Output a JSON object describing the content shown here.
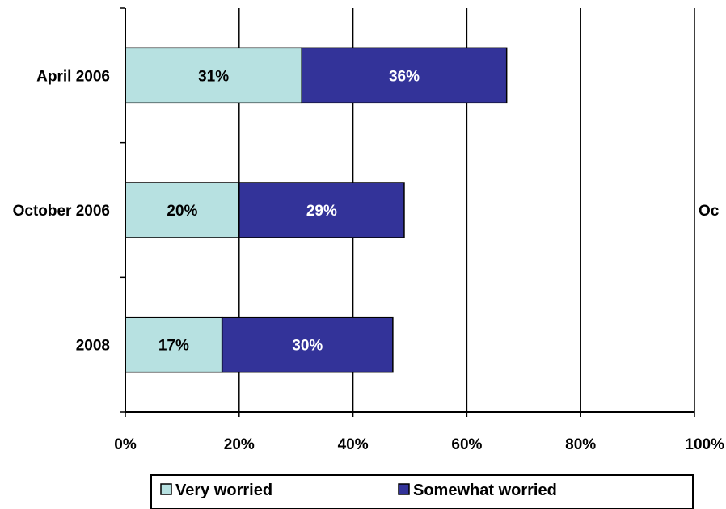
{
  "chart_data": {
    "type": "bar",
    "orientation": "horizontal",
    "stacked": true,
    "categories": [
      "April 2006",
      "October 2006",
      "2008"
    ],
    "series": [
      {
        "name": "Very worried",
        "values": [
          31,
          20,
          17
        ],
        "labels": [
          "31%",
          "20%",
          "17%"
        ],
        "color": "#B7E1E1",
        "label_color": "#000000"
      },
      {
        "name": "Somewhat worried",
        "values": [
          36,
          29,
          30
        ],
        "labels": [
          "36%",
          "29%",
          "30%"
        ],
        "color": "#333399",
        "label_color": "#FFFFFF"
      }
    ],
    "xlim": [
      0,
      100
    ],
    "x_ticks": [
      0,
      20,
      40,
      60,
      80,
      100
    ],
    "x_tick_labels": [
      "0%",
      "20%",
      "40%",
      "60%",
      "80%",
      "100%"
    ],
    "right_edge_label": "Oc",
    "grid": "vertical",
    "legend": {
      "position": "bottom",
      "entries": [
        "Very worried",
        "Somewhat worried"
      ]
    },
    "title": "",
    "xlabel": "",
    "ylabel": ""
  }
}
